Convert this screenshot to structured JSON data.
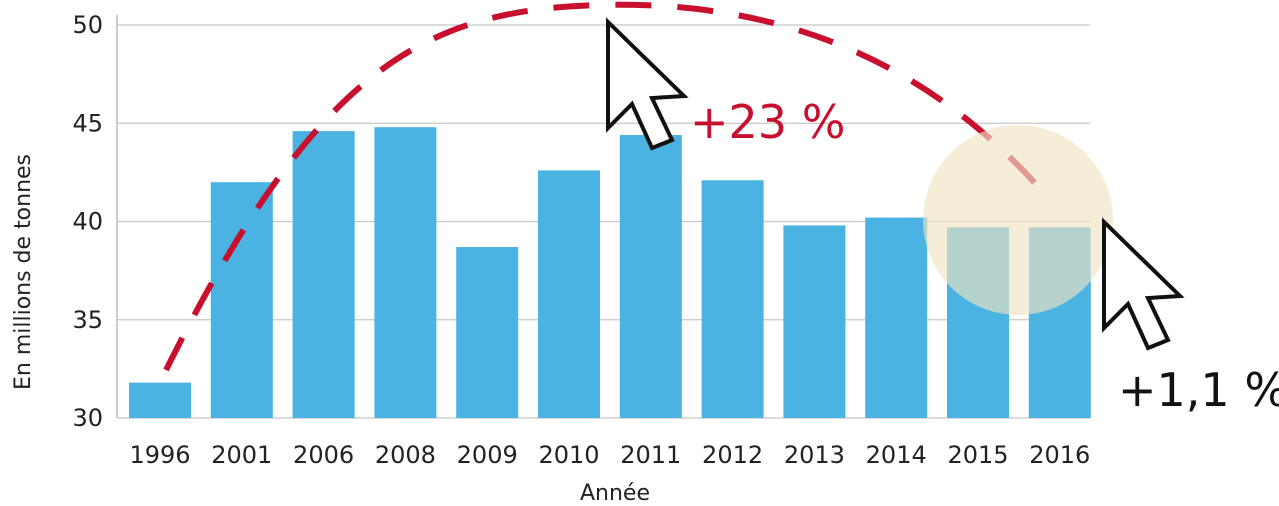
{
  "chart_data": {
    "type": "bar",
    "title": "",
    "xlabel": "Année",
    "ylabel": "En millions de tonnes",
    "categories": [
      "1996",
      "2001",
      "2006",
      "2008",
      "2009",
      "2010",
      "2011",
      "2012",
      "2013",
      "2014",
      "2015",
      "2016"
    ],
    "values": [
      31.8,
      42.0,
      44.6,
      44.8,
      38.7,
      42.6,
      44.4,
      42.1,
      39.8,
      40.2,
      39.7,
      39.7
    ],
    "ylim": [
      30,
      50
    ],
    "yticks": [
      "30",
      "35",
      "40",
      "45",
      "50"
    ],
    "grid": true,
    "legend": "none",
    "annotations": [
      {
        "text": "+23 %",
        "color": "#c8102e"
      },
      {
        "text": "+1,1 %",
        "color": "#111111"
      }
    ],
    "colors": {
      "bar": "#4ab3e2",
      "trend": "#c8102e",
      "highlight": "#efe3c3",
      "grid": "#c8c8c8"
    }
  }
}
